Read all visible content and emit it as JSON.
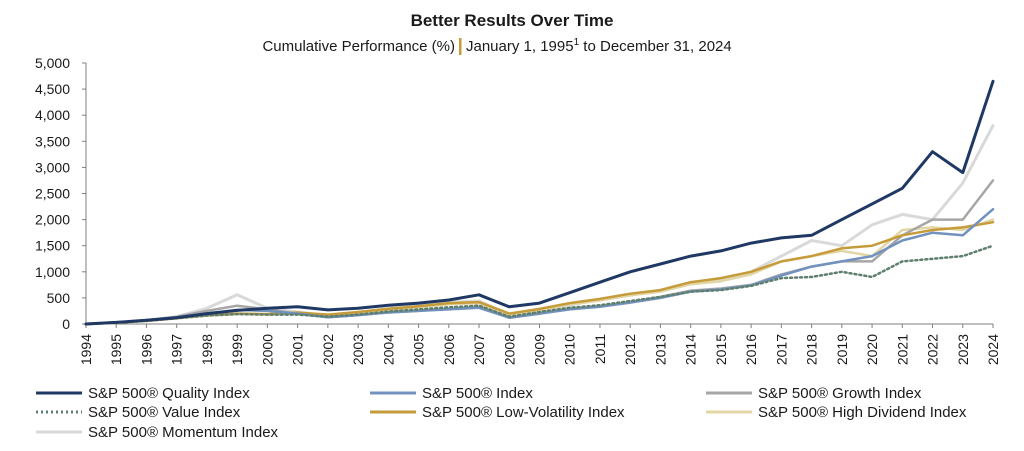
{
  "chart_data": {
    "type": "line",
    "title": "Better Results Over Time",
    "subtitle_left": "Cumulative Performance (%)",
    "subtitle_right": "January 1, 1995",
    "subtitle_sup": "1",
    "subtitle_end": " to December 31, 2024",
    "xlabel": "",
    "ylabel": "",
    "ylim": [
      0,
      5000
    ],
    "xlim": [
      1994,
      2024
    ],
    "y_ticks": [
      "0",
      "500",
      "1,000",
      "1,500",
      "2,000",
      "2,500",
      "3,000",
      "3,500",
      "4,000",
      "4,500",
      "5,000"
    ],
    "x_ticks": [
      "1994",
      "1995",
      "1996",
      "1997",
      "1998",
      "1999",
      "2000",
      "2001",
      "2002",
      "2003",
      "2004",
      "2005",
      "2006",
      "2007",
      "2008",
      "2009",
      "2010",
      "2011",
      "2012",
      "2013",
      "2014",
      "2015",
      "2016",
      "2017",
      "2018",
      "2019",
      "2020",
      "2021",
      "2022",
      "2023",
      "2024"
    ],
    "grid": false,
    "legend_position": "bottom",
    "x": [
      1994,
      1995,
      1996,
      1997,
      1998,
      1999,
      2000,
      2001,
      2002,
      2003,
      2004,
      2005,
      2006,
      2007,
      2008,
      2009,
      2010,
      2011,
      2012,
      2013,
      2014,
      2015,
      2016,
      2017,
      2018,
      2019,
      2020,
      2021,
      2022,
      2023,
      2024
    ],
    "series": [
      {
        "name": "S&P 500® Momentum Index",
        "color": "#d9d9d9",
        "dash": "",
        "width": 3,
        "values": [
          0,
          30,
          70,
          140,
          300,
          560,
          300,
          230,
          150,
          220,
          300,
          350,
          420,
          440,
          180,
          250,
          360,
          470,
          550,
          650,
          800,
          850,
          1000,
          1300,
          1600,
          1500,
          1900,
          2100,
          2000,
          2700,
          3800
        ]
      },
      {
        "name": "S&P 500® High Dividend Index",
        "color": "#e3d6a6",
        "dash": "",
        "width": 2.5,
        "values": [
          0,
          25,
          60,
          110,
          160,
          190,
          180,
          200,
          150,
          200,
          260,
          320,
          380,
          400,
          150,
          250,
          380,
          450,
          550,
          620,
          760,
          820,
          950,
          1200,
          1300,
          1400,
          1300,
          1800,
          1850,
          1800,
          2000
        ]
      },
      {
        "name": "S&P 500® Growth Index",
        "color": "#a6a6a6",
        "dash": "",
        "width": 2.5,
        "values": [
          0,
          30,
          70,
          140,
          250,
          350,
          280,
          200,
          130,
          170,
          220,
          250,
          290,
          330,
          120,
          200,
          290,
          340,
          420,
          520,
          640,
          680,
          750,
          950,
          1100,
          1200,
          1200,
          1700,
          2000,
          2000,
          2750
        ]
      },
      {
        "name": "S&P 500® Low-Volatility Index",
        "color": "#c69c3a",
        "dash": "",
        "width": 2.5,
        "values": [
          0,
          25,
          60,
          110,
          170,
          200,
          190,
          220,
          180,
          230,
          290,
          340,
          400,
          420,
          200,
          290,
          400,
          480,
          580,
          650,
          800,
          880,
          1000,
          1200,
          1300,
          1450,
          1500,
          1700,
          1800,
          1850,
          1950
        ]
      },
      {
        "name": "S&P 500® Index",
        "color": "#7191bf",
        "dash": "",
        "width": 2.5,
        "values": [
          0,
          30,
          70,
          130,
          200,
          270,
          250,
          200,
          130,
          170,
          220,
          250,
          280,
          310,
          120,
          200,
          280,
          330,
          410,
          500,
          620,
          660,
          740,
          930,
          1100,
          1200,
          1300,
          1600,
          1750,
          1700,
          2200
        ]
      },
      {
        "name": "S&P 500® Value Index",
        "color": "#5f7f6e",
        "dash": "2,3",
        "width": 2.5,
        "values": [
          0,
          25,
          60,
          110,
          160,
          190,
          180,
          180,
          140,
          180,
          240,
          280,
          320,
          350,
          140,
          230,
          310,
          360,
          440,
          520,
          620,
          650,
          730,
          880,
          900,
          1000,
          900,
          1200,
          1250,
          1300,
          1500
        ]
      },
      {
        "name": "S&P 500® Quality Index",
        "color": "#1f3864",
        "dash": "",
        "width": 3,
        "values": [
          0,
          30,
          70,
          120,
          200,
          260,
          300,
          330,
          270,
          300,
          360,
          400,
          460,
          560,
          330,
          400,
          600,
          800,
          1000,
          1150,
          1300,
          1400,
          1550,
          1650,
          1700,
          2000,
          2300,
          2600,
          3300,
          2900,
          4650
        ]
      }
    ]
  },
  "legend": [
    {
      "label": "S&P 500® Quality Index",
      "color": "#1f3864",
      "dash": ""
    },
    {
      "label": "S&P 500® Index",
      "color": "#7191bf",
      "dash": ""
    },
    {
      "label": "S&P 500® Growth Index",
      "color": "#a6a6a6",
      "dash": ""
    },
    {
      "label": "S&P 500® Value Index",
      "color": "#5f7f6e",
      "dash": "2,3"
    },
    {
      "label": "S&P 500® Low-Volatility Index",
      "color": "#c69c3a",
      "dash": ""
    },
    {
      "label": "S&P 500® High Dividend Index",
      "color": "#e3d6a6",
      "dash": ""
    },
    {
      "label": "S&P 500® Momentum Index",
      "color": "#d9d9d9",
      "dash": ""
    }
  ]
}
